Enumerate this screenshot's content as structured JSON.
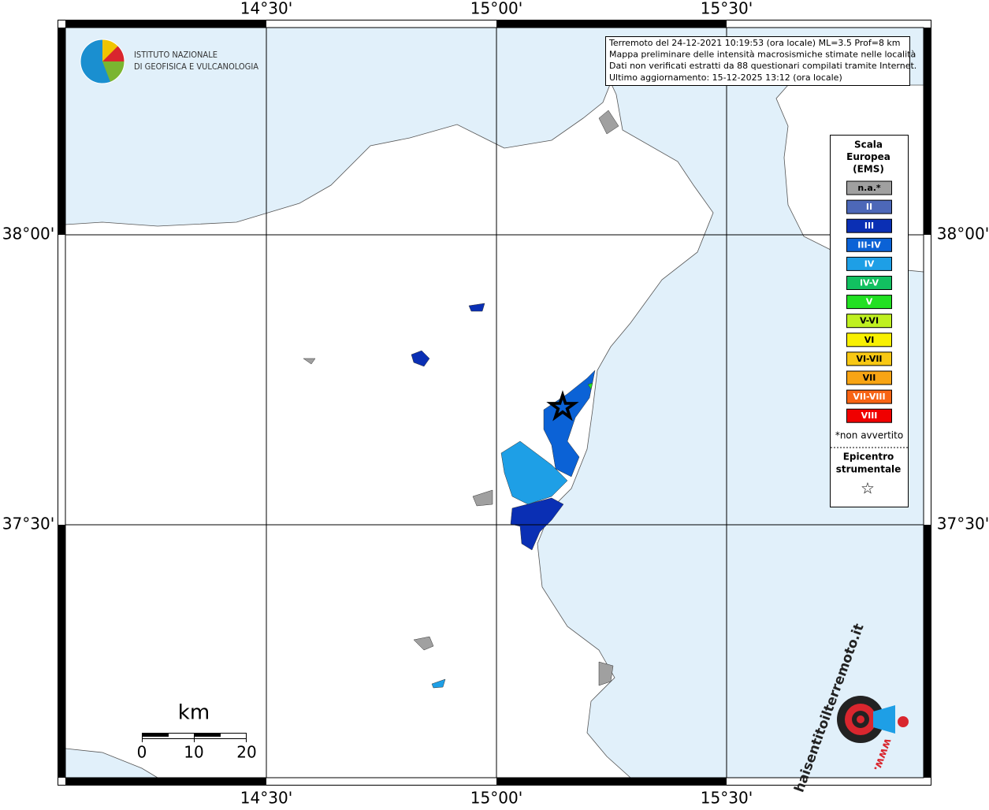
{
  "map": {
    "longitude_labels": [
      "14°30'",
      "15°00'",
      "15°30'"
    ],
    "latitude_labels": [
      "38°00'",
      "37°30'"
    ],
    "info_box": [
      "Terremoto del 24-12-2021 10:19:53 (ora locale) ML=3.5 Prof=8 km",
      "Mappa preliminare delle intensità macrosismiche stimate nelle località",
      "Dati non verificati estratti da 88 questionari compilati tramite Internet.",
      "Ultimo aggiornamento: 15-12-2025 13:12 (ora locale)"
    ],
    "logo": [
      "ISTITUTO NAZIONALE",
      "DI GEOFISICA E VULCANOLOGIA"
    ],
    "legend": {
      "title": [
        "Scala",
        "Europea",
        "(EMS)"
      ],
      "items": [
        {
          "label": "n.a.*",
          "color": "#a0a0a0"
        },
        {
          "label": "II",
          "color": "#4d68b8"
        },
        {
          "label": "III",
          "color": "#0a2fb4"
        },
        {
          "label": "III-IV",
          "color": "#0b62d6"
        },
        {
          "label": "IV",
          "color": "#1e9fe6"
        },
        {
          "label": "IV-V",
          "color": "#12c060"
        },
        {
          "label": "V",
          "color": "#22e022"
        },
        {
          "label": "V-VI",
          "color": "#bff020"
        },
        {
          "label": "VI",
          "color": "#f8f000"
        },
        {
          "label": "VI-VII",
          "color": "#f8c814"
        },
        {
          "label": "VII",
          "color": "#f8a414"
        },
        {
          "label": "VII-VIII",
          "color": "#f86414"
        },
        {
          "label": "VIII",
          "color": "#f00000"
        }
      ],
      "note": "*non avvertito",
      "epicenter": [
        "Epicentro",
        "strumentale"
      ]
    },
    "scale": {
      "unit": "km",
      "labels": [
        "0",
        "10",
        "20"
      ]
    },
    "badge": {
      "site": "haisentitoilterremoto.it",
      "www": "www."
    }
  }
}
